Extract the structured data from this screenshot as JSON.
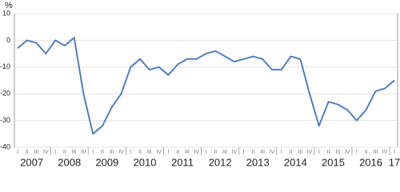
{
  "chart_data": {
    "type": "line",
    "y_unit": "%",
    "categories": [
      "I",
      "II",
      "III",
      "IV",
      "I",
      "II",
      "III",
      "IV",
      "I",
      "II",
      "III",
      "IV",
      "I",
      "II",
      "III",
      "IV",
      "I",
      "II",
      "III",
      "IV",
      "I",
      "II",
      "III",
      "IV",
      "I",
      "II",
      "III",
      "IV",
      "I",
      "II",
      "III",
      "IV",
      "I",
      "II",
      "III",
      "IV",
      "I",
      "II",
      "III",
      "IV",
      "I"
    ],
    "year_labels": [
      "2007",
      "2008",
      "2009",
      "2010",
      "2011",
      "2012",
      "2013",
      "2014",
      "2015",
      "2016",
      "17"
    ],
    "series": [
      {
        "color": "#4f7fc4",
        "values": [
          -3,
          0,
          -1,
          -5,
          0,
          -2,
          1,
          -20,
          -35,
          -32,
          -25,
          -20,
          -10,
          -7,
          -11,
          -10,
          -13,
          -9,
          -7,
          -7,
          -5,
          -4,
          -6,
          -8,
          -7,
          -6,
          -7,
          -11,
          -11,
          -6,
          -7,
          -20,
          -32,
          -23,
          -24,
          -26,
          -30,
          -26,
          -19,
          -18,
          -15
        ]
      }
    ],
    "ylim": [
      -40,
      10
    ],
    "yticks": [
      -40,
      -30,
      -20,
      -10,
      0,
      10
    ],
    "grid": true
  }
}
